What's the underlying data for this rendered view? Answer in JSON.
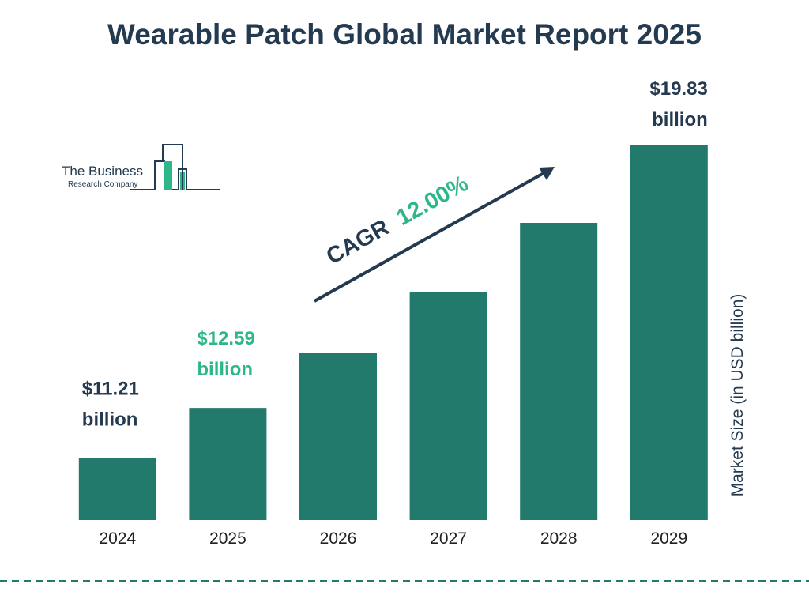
{
  "chart_data": {
    "type": "bar",
    "title": "Wearable Patch Global Market Report 2025",
    "categories": [
      "2024",
      "2025",
      "2026",
      "2027",
      "2028",
      "2029"
    ],
    "values": [
      11.21,
      12.59,
      14.1,
      15.79,
      17.69,
      19.83
    ],
    "value_labels": [
      "$11.21 billion",
      "$12.59 billion",
      null,
      null,
      null,
      "$19.83 billion"
    ],
    "color": "#217a6b",
    "ylim": [
      9.5,
      20.5
    ],
    "y_axis_label": "Market Size (in USD billion)",
    "annotation": {
      "label": "CAGR",
      "value": "12.00%"
    }
  },
  "logo": {
    "line1": "The Business",
    "line2": "Research Company"
  }
}
